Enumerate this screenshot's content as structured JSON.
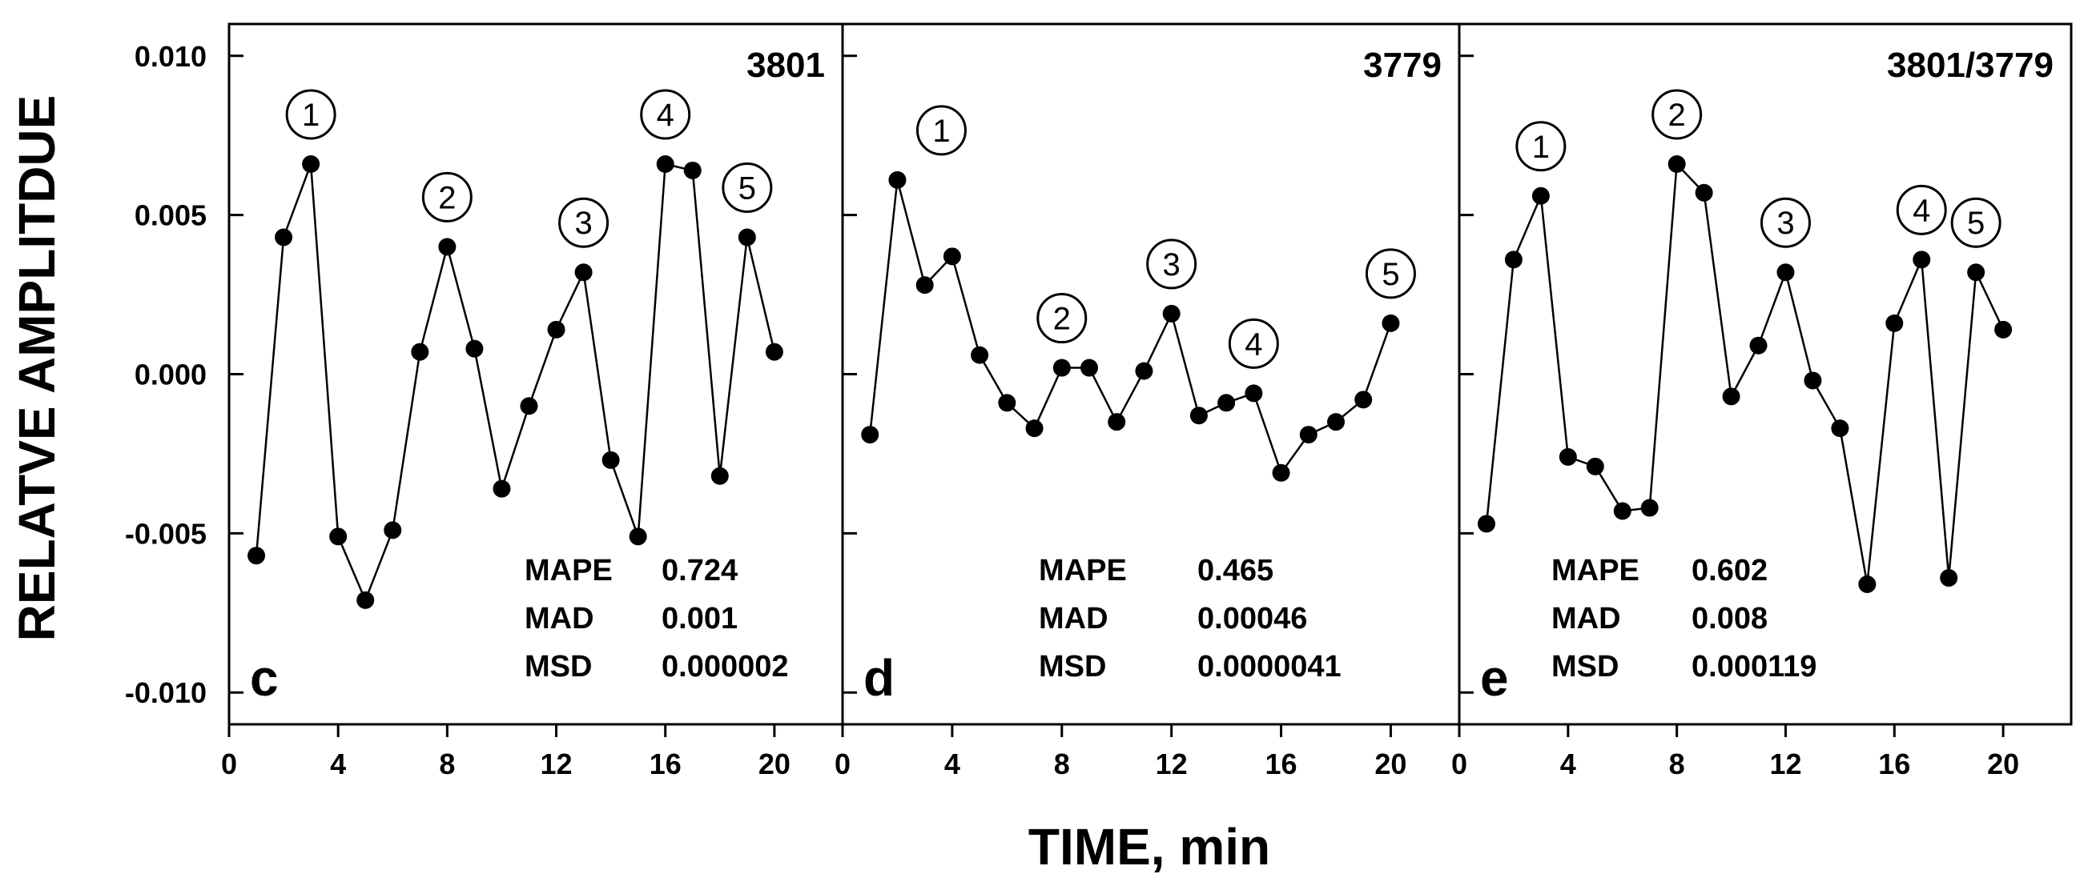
{
  "chart_data": [
    {
      "type": "line",
      "panel_label": "c",
      "title": "3801",
      "x": [
        1,
        2,
        3,
        4,
        5,
        6,
        7,
        8,
        9,
        10,
        11,
        12,
        13,
        14,
        15,
        16,
        17,
        18,
        19,
        20
      ],
      "y": [
        -0.0057,
        0.0043,
        0.0066,
        -0.0051,
        -0.0071,
        -0.0049,
        0.0007,
        0.004,
        0.0008,
        -0.0036,
        -0.001,
        0.0014,
        0.0032,
        -0.0027,
        -0.0051,
        0.0066,
        0.0064,
        -0.0032,
        0.0043,
        0.0007
      ],
      "peaks": [
        {
          "label": "1",
          "x": 3
        },
        {
          "label": "2",
          "x": 8
        },
        {
          "label": "3",
          "x": 13
        },
        {
          "label": "4",
          "x": 16
        },
        {
          "label": "5",
          "x": 19
        }
      ],
      "stats": [
        {
          "name": "MAPE",
          "value": "0.724"
        },
        {
          "name": "MAD",
          "value": "0.001"
        },
        {
          "name": "MSD",
          "value": "0.000002"
        }
      ]
    },
    {
      "type": "line",
      "panel_label": "d",
      "title": "3779",
      "x": [
        1,
        2,
        3,
        4,
        5,
        6,
        7,
        8,
        9,
        10,
        11,
        12,
        13,
        14,
        15,
        16,
        17,
        18,
        19,
        20
      ],
      "y": [
        -0.0019,
        0.0061,
        0.0028,
        0.0037,
        0.0006,
        -0.0009,
        -0.0017,
        0.0002,
        0.0002,
        -0.0015,
        0.0001,
        0.0019,
        -0.0013,
        -0.0009,
        -0.0006,
        -0.0031,
        -0.0019,
        -0.0015,
        -0.0008,
        0.0016
      ],
      "peaks": [
        {
          "label": "1",
          "x": 2
        },
        {
          "label": "2",
          "x": 8
        },
        {
          "label": "3",
          "x": 12
        },
        {
          "label": "4",
          "x": 15
        },
        {
          "label": "5",
          "x": 20
        }
      ],
      "stats": [
        {
          "name": "MAPE",
          "value": "0.465"
        },
        {
          "name": "MAD",
          "value": "0.00046"
        },
        {
          "name": "MSD",
          "value": "0.0000041"
        }
      ]
    },
    {
      "type": "line",
      "panel_label": "e",
      "title": "3801/3779",
      "x": [
        1,
        2,
        3,
        4,
        5,
        6,
        7,
        8,
        9,
        10,
        11,
        12,
        13,
        14,
        15,
        16,
        17,
        18,
        19,
        20
      ],
      "y": [
        -0.0047,
        0.0036,
        0.0056,
        -0.0026,
        -0.0029,
        -0.0043,
        -0.0042,
        0.0066,
        0.0057,
        -0.0007,
        0.0009,
        0.0032,
        -0.0002,
        -0.0017,
        -0.0066,
        0.0016,
        0.0036,
        -0.0064,
        0.0032,
        0.0014
      ],
      "peaks": [
        {
          "label": "1",
          "x": 3
        },
        {
          "label": "2",
          "x": 8
        },
        {
          "label": "3",
          "x": 12
        },
        {
          "label": "4",
          "x": 17
        },
        {
          "label": "5",
          "x": 19
        }
      ],
      "stats": [
        {
          "name": "MAPE",
          "value": "0.602"
        },
        {
          "name": "MAD",
          "value": "0.008"
        },
        {
          "name": "MSD",
          "value": "0.000119"
        }
      ]
    }
  ],
  "axes": {
    "ylabel": "RELATVE AMPLITDUE",
    "xlabel": "TIME, min",
    "ylim": [
      -0.011,
      0.011
    ],
    "yticks": [
      "0.010",
      "0.005",
      "0.000",
      "-0.005",
      "-0.010"
    ],
    "xlim": [
      0,
      22.5
    ],
    "xticks": [
      "0",
      "4",
      "8",
      "12",
      "16",
      "20"
    ]
  }
}
